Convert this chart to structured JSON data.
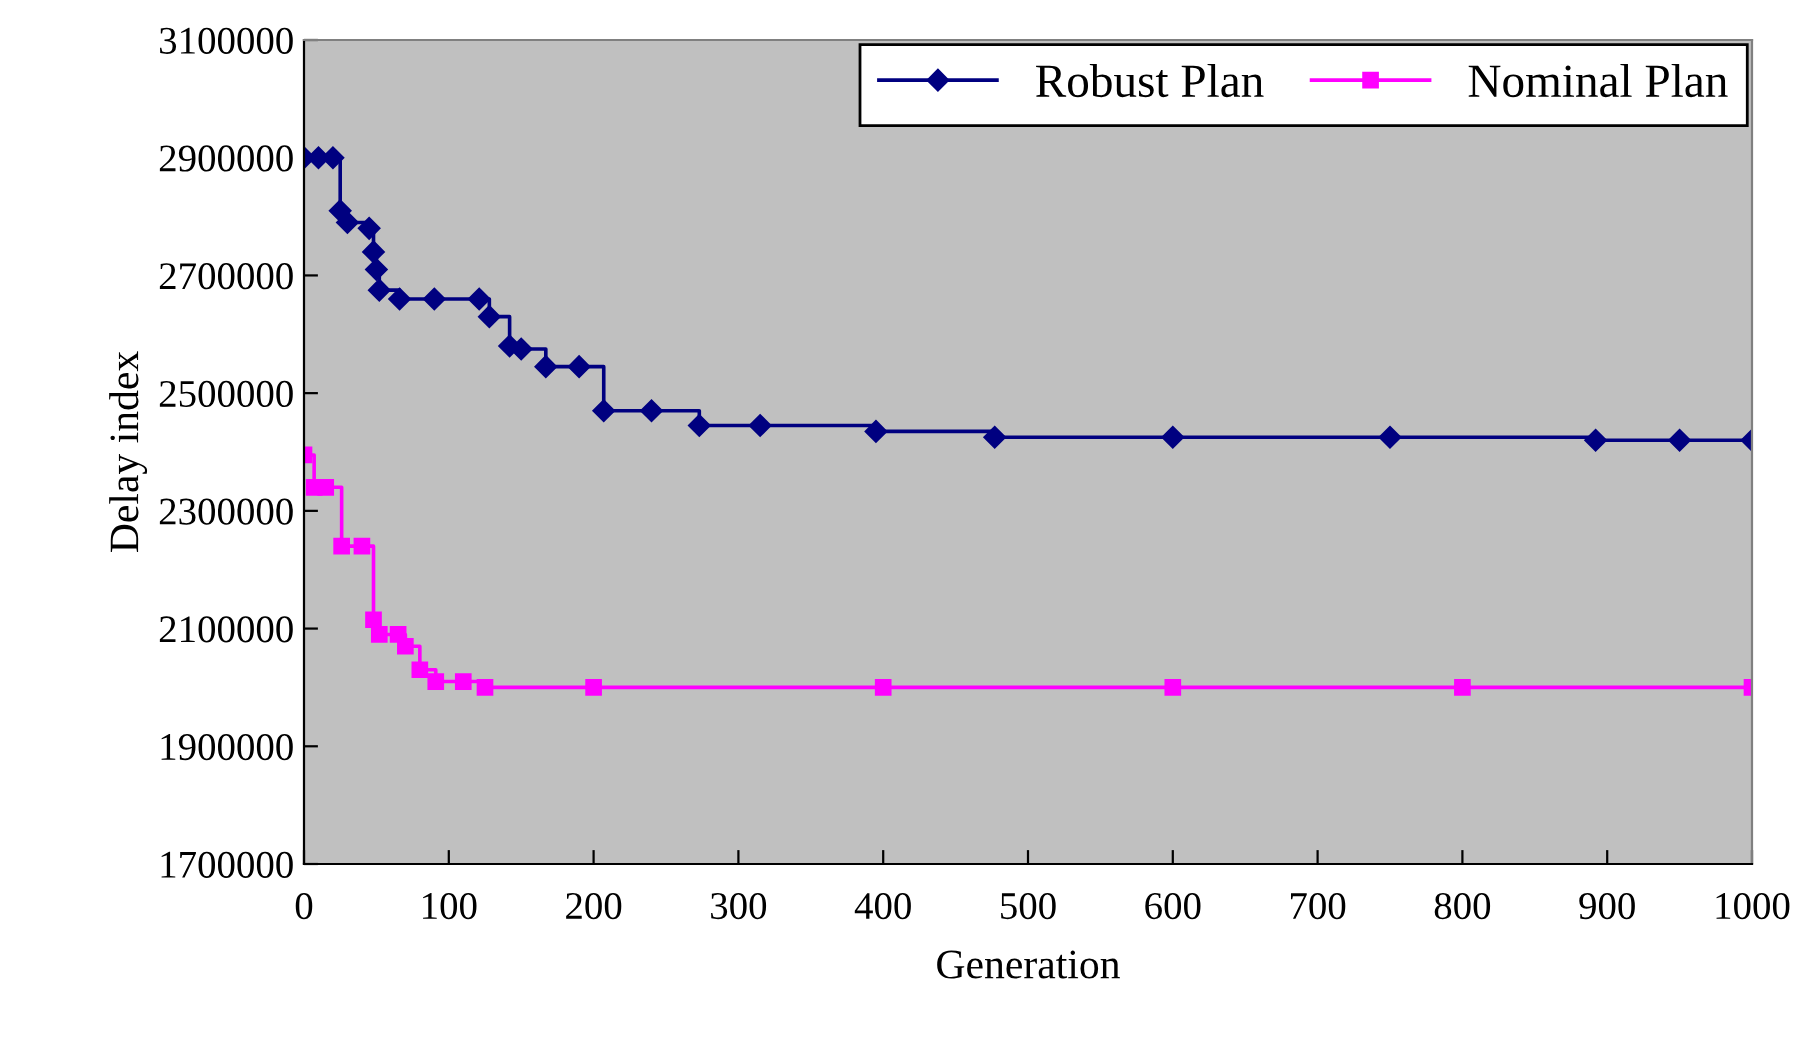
{
  "chart_data": {
    "type": "step",
    "xlabel": "Generation",
    "ylabel": "Delay index",
    "xlim": [
      0,
      1000
    ],
    "xticks": [
      0,
      100,
      200,
      300,
      400,
      500,
      600,
      700,
      800,
      900,
      1000
    ],
    "ylim": [
      1700000,
      3100000
    ],
    "yticks": [
      1700000,
      1900000,
      2100000,
      2300000,
      2500000,
      2700000,
      2900000,
      3100000
    ],
    "grid": false,
    "legend": "top right",
    "line_style": "solid",
    "series": [
      {
        "name": "Robust Plan",
        "color": "#000080",
        "marker": "diamond",
        "x": [
          0,
          10,
          20,
          25,
          30,
          45,
          48,
          50,
          52,
          66,
          90,
          121,
          128,
          142,
          150,
          167,
          190,
          207,
          240,
          273,
          315,
          395,
          477,
          600,
          750,
          892,
          950,
          1000
        ],
        "values": [
          2900000,
          2900000,
          2900000,
          2810000,
          2790000,
          2780000,
          2740000,
          2710000,
          2675000,
          2660000,
          2660000,
          2660000,
          2630000,
          2580000,
          2575000,
          2545000,
          2545000,
          2470000,
          2470000,
          2445000,
          2445000,
          2435000,
          2425000,
          2425000,
          2425000,
          2420000,
          2420000,
          2420000
        ]
      },
      {
        "name": "Nominal Plan",
        "color": "#ff00ff",
        "marker": "square",
        "x": [
          0,
          7,
          15,
          26,
          40,
          48,
          52,
          65,
          70,
          80,
          91,
          110,
          125,
          200,
          400,
          600,
          800,
          1000
        ],
        "values": [
          2395000,
          2340000,
          2340000,
          2240000,
          2240000,
          2115000,
          2090000,
          2090000,
          2070000,
          2030000,
          2010000,
          2010000,
          2000000,
          2000000,
          2000000,
          2000000,
          2000000,
          2000000
        ]
      }
    ]
  }
}
